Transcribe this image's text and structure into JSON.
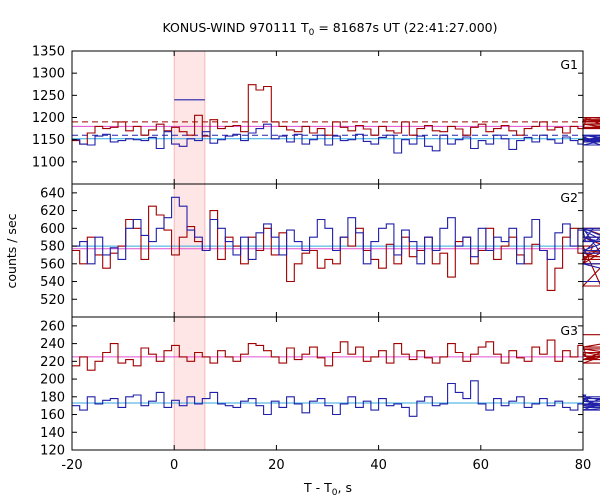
{
  "title": {
    "prefix": "KONUS-WIND 970111 T",
    "sub": "0",
    "suffix": " = 81687s UT (22:41:27.000)"
  },
  "xlabel": {
    "prefix": "T - T",
    "sub": "0",
    "suffix": ", s"
  },
  "ylabel": "counts / sec",
  "colors": {
    "red": "#a00000",
    "blue": "#2020a8",
    "red_fit": "#e050d0",
    "blue_fit": "#30a8e0",
    "highlight": "#ffe6e6"
  },
  "chart_data": {
    "type": "line",
    "step_style": "histogram",
    "xlim": [
      -20,
      80
    ],
    "xticks": [
      -20,
      0,
      20,
      40,
      60,
      80
    ],
    "xtick_labels": [
      "-20",
      "0",
      "20",
      "40",
      "60",
      "80"
    ],
    "highlight_interval": [
      0,
      6
    ],
    "panels": [
      {
        "label": "G1",
        "ylim": [
          1050,
          1350
        ],
        "yticks": [
          1050,
          1100,
          1150,
          1200,
          1250,
          1300,
          1350
        ],
        "series": [
          {
            "color": "red",
            "x_start": -20,
            "bin": 1.5,
            "values": [
              1148,
              1140,
              1165,
              1180,
              1175,
              1178,
              1190,
              1170,
              1180,
              1160,
              1172,
              1185,
              1170,
              1178,
              1168,
              1160,
              1205,
              1158,
              1195,
              1175,
              1180,
              1182,
              1168,
              1274,
              1262,
              1270,
              1190,
              1180,
              1172,
              1168,
              1180,
              1165,
              1175,
              1160,
              1190,
              1178,
              1170,
              1182,
              1174,
              1160,
              1180,
              1170,
              1165,
              1190,
              1160,
              1175,
              1182,
              1170,
              1168,
              1180,
              1174,
              1160,
              1178,
              1185,
              1168,
              1175,
              1182,
              1170,
              1160,
              1175,
              1180,
              1190,
              1172,
              1178,
              1165,
              1180,
              1175,
              1192,
              1200,
              1185,
              1178,
              1175,
              1190,
              1200,
              1195,
              1185,
              1190
            ]
          },
          {
            "color": "blue",
            "x_start": -20,
            "bin": 1.5,
            "values": [
              1150,
              1140,
              1138,
              1158,
              1162,
              1145,
              1148,
              1152,
              1150,
              1148,
              1155,
              1130,
              1168,
              1140,
              1135,
              1152,
              1148,
              1168,
              1142,
              1150,
              1158,
              1162,
              1148,
              1165,
              1175,
              1185,
              1152,
              1158,
              1145,
              1162,
              1140,
              1150,
              1160,
              1138,
              1158,
              1148,
              1150,
              1162,
              1146,
              1140,
              1155,
              1160,
              1120,
              1150,
              1140,
              1158,
              1135,
              1125,
              1160,
              1140,
              1150,
              1156,
              1130,
              1148,
              1140,
              1160,
              1152,
              1128,
              1148,
              1155,
              1145,
              1160,
              1150,
              1142,
              1156,
              1148,
              1140,
              1155,
              1150,
              1138,
              1150,
              1160,
              1145,
              1152,
              1148,
              1150,
              1158
            ]
          },
          {
            "color": "blue",
            "x_start": 0,
            "bin": 3,
            "values": [
              1240,
              1240
            ]
          }
        ],
        "fits": [
          {
            "color": "red",
            "value": 1190,
            "dashed": true
          },
          {
            "color": "red_fit",
            "value": 1180,
            "dashed": false
          },
          {
            "color": "blue",
            "value": 1160,
            "dashed": true
          },
          {
            "color": "blue_fit",
            "value": 1152,
            "dashed": false
          }
        ]
      },
      {
        "label": "G2",
        "ylim": [
          500,
          650
        ],
        "yticks": [
          500,
          520,
          540,
          560,
          580,
          600,
          620,
          640
        ],
        "series": [
          {
            "color": "red",
            "x_start": -20,
            "bin": 1.5,
            "values": [
              575,
              560,
              590,
              570,
              555,
              572,
              580,
              610,
              600,
              565,
              625,
              615,
              598,
              570,
              590,
              602,
              585,
              575,
              620,
              565,
              590,
              580,
              560,
              590,
              575,
              600,
              570,
              595,
              540,
              560,
              572,
              575,
              555,
              565,
              560,
              590,
              580,
              600,
              575,
              565,
              555,
              582,
              560,
              590,
              568,
              575,
              590,
              560,
              572,
              545,
              585,
              590,
              560,
              575,
              600,
              565,
              580,
              590,
              570,
              560,
              582,
              575,
              530,
              555,
              590,
              600,
              572,
              560,
              580,
              535,
              565,
              590,
              572,
              560,
              600,
              575,
              568
            ]
          },
          {
            "color": "blue",
            "x_start": -20,
            "bin": 1.5,
            "values": [
              580,
              585,
              560,
              590,
              570,
              578,
              565,
              600,
              610,
              592,
              585,
              600,
              612,
              635,
              625,
              598,
              590,
              575,
              610,
              600,
              585,
              570,
              590,
              565,
              595,
              605,
              590,
              570,
              598,
              585,
              575,
              590,
              610,
              600,
              575,
              590,
              612,
              595,
              560,
              585,
              600,
              605,
              570,
              598,
              585,
              560,
              590,
              575,
              600,
              612,
              580,
              590,
              568,
              600,
              575,
              590,
              585,
              600,
              560,
              590,
              610,
              575,
              565,
              595,
              605,
              580,
              598,
              585,
              600,
              572,
              600,
              585,
              590,
              575,
              598,
              560,
              540
            ]
          }
        ],
        "fits": [
          {
            "color": "red_fit",
            "value": 577,
            "dashed": false
          },
          {
            "color": "blue_fit",
            "value": 580,
            "dashed": false
          }
        ]
      },
      {
        "label": "G3",
        "ylim": [
          120,
          270
        ],
        "yticks": [
          120,
          140,
          160,
          180,
          200,
          220,
          240,
          260
        ],
        "series": [
          {
            "color": "red",
            "x_start": -20,
            "bin": 1.5,
            "values": [
              215,
              225,
              210,
              220,
              230,
              240,
              218,
              222,
              215,
              235,
              228,
              220,
              232,
              238,
              225,
              220,
              230,
              225,
              218,
              232,
              225,
              220,
              228,
              240,
              238,
              232,
              225,
              218,
              235,
              222,
              228,
              236,
              224,
              215,
              230,
              242,
              228,
              236,
              220,
              225,
              232,
              218,
              240,
              228,
              222,
              232,
              224,
              218,
              225,
              240,
              230,
              220,
              228,
              236,
              242,
              228,
              218,
              232,
              224,
              220,
              236,
              228,
              244,
              220,
              232,
              225,
              238,
              228,
              222,
              230,
              226,
              218,
              234,
              226,
              222,
              236,
              250
            ]
          },
          {
            "color": "blue",
            "x_start": -20,
            "bin": 1.5,
            "values": [
              170,
              165,
              180,
              172,
              176,
              178,
              168,
              180,
              182,
              170,
              175,
              185,
              168,
              176,
              170,
              180,
              172,
              178,
              185,
              172,
              170,
              168,
              175,
              178,
              170,
              160,
              175,
              168,
              180,
              172,
              162,
              175,
              178,
              170,
              160,
              172,
              180,
              168,
              175,
              165,
              178,
              170,
              172,
              168,
              158,
              175,
              180,
              170,
              172,
              195,
              185,
              178,
              198,
              172,
              165,
              178,
              170,
              175,
              180,
              168,
              172,
              178,
              170,
              175,
              168,
              165,
              172,
              182,
              170,
              178,
              165,
              180,
              172,
              168,
              175,
              165,
              172
            ]
          }
        ],
        "fits": [
          {
            "color": "red_fit",
            "value": 225,
            "dashed": false
          },
          {
            "color": "blue_fit",
            "value": 173,
            "dashed": false
          }
        ]
      }
    ]
  }
}
